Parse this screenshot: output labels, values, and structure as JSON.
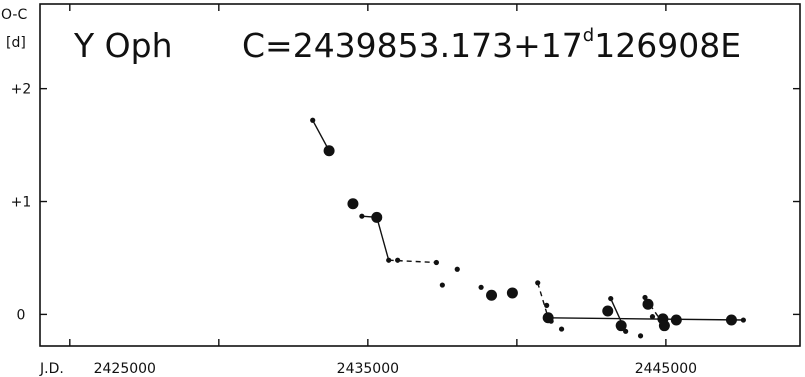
{
  "chart_data": {
    "type": "scatter",
    "star_label": "Y Oph",
    "ephemeris": {
      "prefix": "C=2439853.173+17",
      "superscript": "d",
      "suffix": "126908E"
    },
    "y_axis_title_line1": "O-C",
    "y_axis_title_line2": "[d]",
    "x_axis_label": "J.D.",
    "xlim": [
      2424000,
      2449500
    ],
    "ylim": [
      -0.28,
      2.75
    ],
    "x_ticks": [
      {
        "value": 2425000,
        "label": "2425000"
      },
      {
        "value": 2430000,
        "label": ""
      },
      {
        "value": 2435000,
        "label": "2435000"
      },
      {
        "value": 2440000,
        "label": ""
      },
      {
        "value": 2445000,
        "label": "2445000"
      }
    ],
    "y_ticks": [
      {
        "value": 0,
        "label": "0"
      },
      {
        "value": 1,
        "label": "+1"
      },
      {
        "value": 2,
        "label": "+2"
      }
    ],
    "points": [
      {
        "x": 2433150,
        "y": 1.72,
        "size": "small"
      },
      {
        "x": 2433700,
        "y": 1.45,
        "size": "large"
      },
      {
        "x": 2434500,
        "y": 0.98,
        "size": "large"
      },
      {
        "x": 2434800,
        "y": 0.87,
        "size": "small"
      },
      {
        "x": 2435300,
        "y": 0.86,
        "size": "large"
      },
      {
        "x": 2435700,
        "y": 0.48,
        "size": "small"
      },
      {
        "x": 2436000,
        "y": 0.48,
        "size": "small"
      },
      {
        "x": 2437300,
        "y": 0.46,
        "size": "small"
      },
      {
        "x": 2437500,
        "y": 0.26,
        "size": "small"
      },
      {
        "x": 2438000,
        "y": 0.4,
        "size": "small"
      },
      {
        "x": 2438800,
        "y": 0.24,
        "size": "small"
      },
      {
        "x": 2439150,
        "y": 0.17,
        "size": "large"
      },
      {
        "x": 2439850,
        "y": 0.19,
        "size": "large"
      },
      {
        "x": 2440700,
        "y": 0.28,
        "size": "small"
      },
      {
        "x": 2441000,
        "y": 0.08,
        "size": "small"
      },
      {
        "x": 2441050,
        "y": -0.03,
        "size": "large"
      },
      {
        "x": 2441150,
        "y": -0.06,
        "size": "small"
      },
      {
        "x": 2441500,
        "y": -0.13,
        "size": "small"
      },
      {
        "x": 2443050,
        "y": 0.03,
        "size": "large"
      },
      {
        "x": 2443150,
        "y": 0.14,
        "size": "small"
      },
      {
        "x": 2443500,
        "y": -0.1,
        "size": "large"
      },
      {
        "x": 2443650,
        "y": -0.15,
        "size": "small"
      },
      {
        "x": 2444150,
        "y": -0.19,
        "size": "small"
      },
      {
        "x": 2444300,
        "y": 0.15,
        "size": "small"
      },
      {
        "x": 2444400,
        "y": 0.09,
        "size": "large"
      },
      {
        "x": 2444550,
        "y": -0.02,
        "size": "small"
      },
      {
        "x": 2444900,
        "y": -0.04,
        "size": "large"
      },
      {
        "x": 2444950,
        "y": -0.1,
        "size": "large"
      },
      {
        "x": 2445350,
        "y": -0.05,
        "size": "large"
      },
      {
        "x": 2447200,
        "y": -0.05,
        "size": "large"
      },
      {
        "x": 2447600,
        "y": -0.05,
        "size": "small"
      }
    ],
    "segments": [
      {
        "style": "solid",
        "points": [
          [
            2433150,
            1.72
          ],
          [
            2433700,
            1.45
          ]
        ]
      },
      {
        "style": "solid",
        "points": [
          [
            2434800,
            0.87
          ],
          [
            2435300,
            0.86
          ],
          [
            2435700,
            0.48
          ]
        ]
      },
      {
        "style": "dashed",
        "points": [
          [
            2435700,
            0.48
          ],
          [
            2437300,
            0.46
          ]
        ]
      },
      {
        "style": "dashed",
        "points": [
          [
            2440700,
            0.28
          ],
          [
            2441050,
            -0.03
          ]
        ]
      },
      {
        "style": "solid",
        "points": [
          [
            2441050,
            -0.03
          ],
          [
            2447600,
            -0.05
          ]
        ]
      },
      {
        "style": "solid",
        "points": [
          [
            2443150,
            0.14
          ],
          [
            2443650,
            -0.15
          ]
        ]
      },
      {
        "style": "dashed",
        "points": [
          [
            2444300,
            0.15
          ],
          [
            2444950,
            -0.1
          ]
        ]
      }
    ]
  }
}
